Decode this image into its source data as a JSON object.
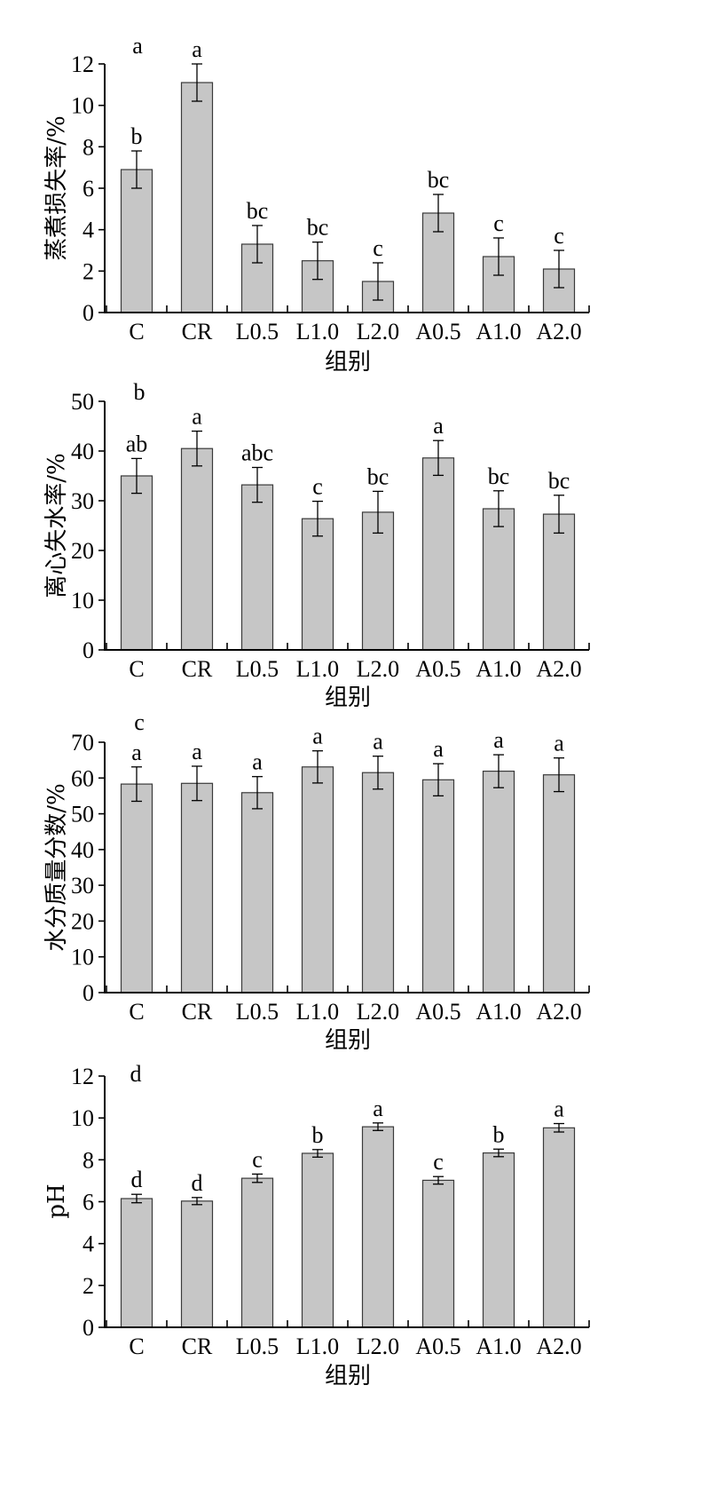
{
  "chart_data": [
    {
      "type": "bar",
      "panel_label": "a",
      "categories": [
        "C",
        "CR",
        "L0.5",
        "L1.0",
        "L2.0",
        "A0.5",
        "A1.0",
        "A2.0"
      ],
      "values": [
        6.9,
        11.1,
        3.3,
        2.5,
        1.5,
        4.8,
        2.7,
        2.1
      ],
      "errors": [
        0.9,
        0.9,
        0.9,
        0.9,
        0.9,
        0.9,
        0.9,
        0.9
      ],
      "significance": [
        "b",
        "a",
        "bc",
        "bc",
        "c",
        "bc",
        "c",
        "c"
      ],
      "xlabel": "组别",
      "ylabel": "蒸煮损失率/%",
      "ylim": [
        0,
        12
      ],
      "yticks": [
        0,
        2,
        4,
        6,
        8,
        10,
        12
      ]
    },
    {
      "type": "bar",
      "panel_label": "b",
      "categories": [
        "C",
        "CR",
        "L0.5",
        "L1.0",
        "L2.0",
        "A0.5",
        "A1.0",
        "A2.0"
      ],
      "values": [
        35.0,
        40.5,
        33.2,
        26.4,
        27.7,
        38.6,
        28.4,
        27.3
      ],
      "errors": [
        3.5,
        3.5,
        3.5,
        3.5,
        4.2,
        3.5,
        3.6,
        3.8
      ],
      "significance": [
        "ab",
        "a",
        "abc",
        "c",
        "bc",
        "a",
        "bc",
        "bc"
      ],
      "xlabel": "组别",
      "ylabel": "离心失水率/%",
      "ylim": [
        0,
        50
      ],
      "yticks": [
        0,
        10,
        20,
        30,
        40,
        50
      ]
    },
    {
      "type": "bar",
      "panel_label": "c",
      "categories": [
        "C",
        "CR",
        "L0.5",
        "L1.0",
        "L2.0",
        "A0.5",
        "A1.0",
        "A2.0"
      ],
      "values": [
        58.3,
        58.5,
        55.9,
        63.1,
        61.5,
        59.5,
        61.9,
        60.9
      ],
      "errors": [
        4.8,
        4.8,
        4.5,
        4.5,
        4.6,
        4.5,
        4.6,
        4.7
      ],
      "significance": [
        "a",
        "a",
        "a",
        "a",
        "a",
        "a",
        "a",
        "a"
      ],
      "xlabel": "组别",
      "ylabel": "水分质量分数/%",
      "ylim": [
        0,
        70
      ],
      "yticks": [
        0,
        10,
        20,
        30,
        40,
        50,
        60,
        70
      ]
    },
    {
      "type": "bar",
      "panel_label": "d",
      "categories": [
        "C",
        "CR",
        "L0.5",
        "L1.0",
        "L2.0",
        "A0.5",
        "A1.0",
        "A2.0"
      ],
      "values": [
        6.15,
        6.03,
        7.12,
        8.31,
        9.58,
        7.02,
        8.33,
        9.53
      ],
      "errors": [
        0.2,
        0.17,
        0.2,
        0.18,
        0.18,
        0.18,
        0.18,
        0.2
      ],
      "significance": [
        "d",
        "d",
        "c",
        "b",
        "a",
        "c",
        "b",
        "a"
      ],
      "xlabel": "组别",
      "ylabel": "pH",
      "ylim": [
        0,
        12
      ],
      "yticks": [
        0,
        2,
        4,
        6,
        8,
        10,
        12
      ]
    }
  ],
  "colors": {
    "bar_fill": "#c6c6c6",
    "bar_stroke": "#3a3a3a",
    "axis": "#000000"
  }
}
